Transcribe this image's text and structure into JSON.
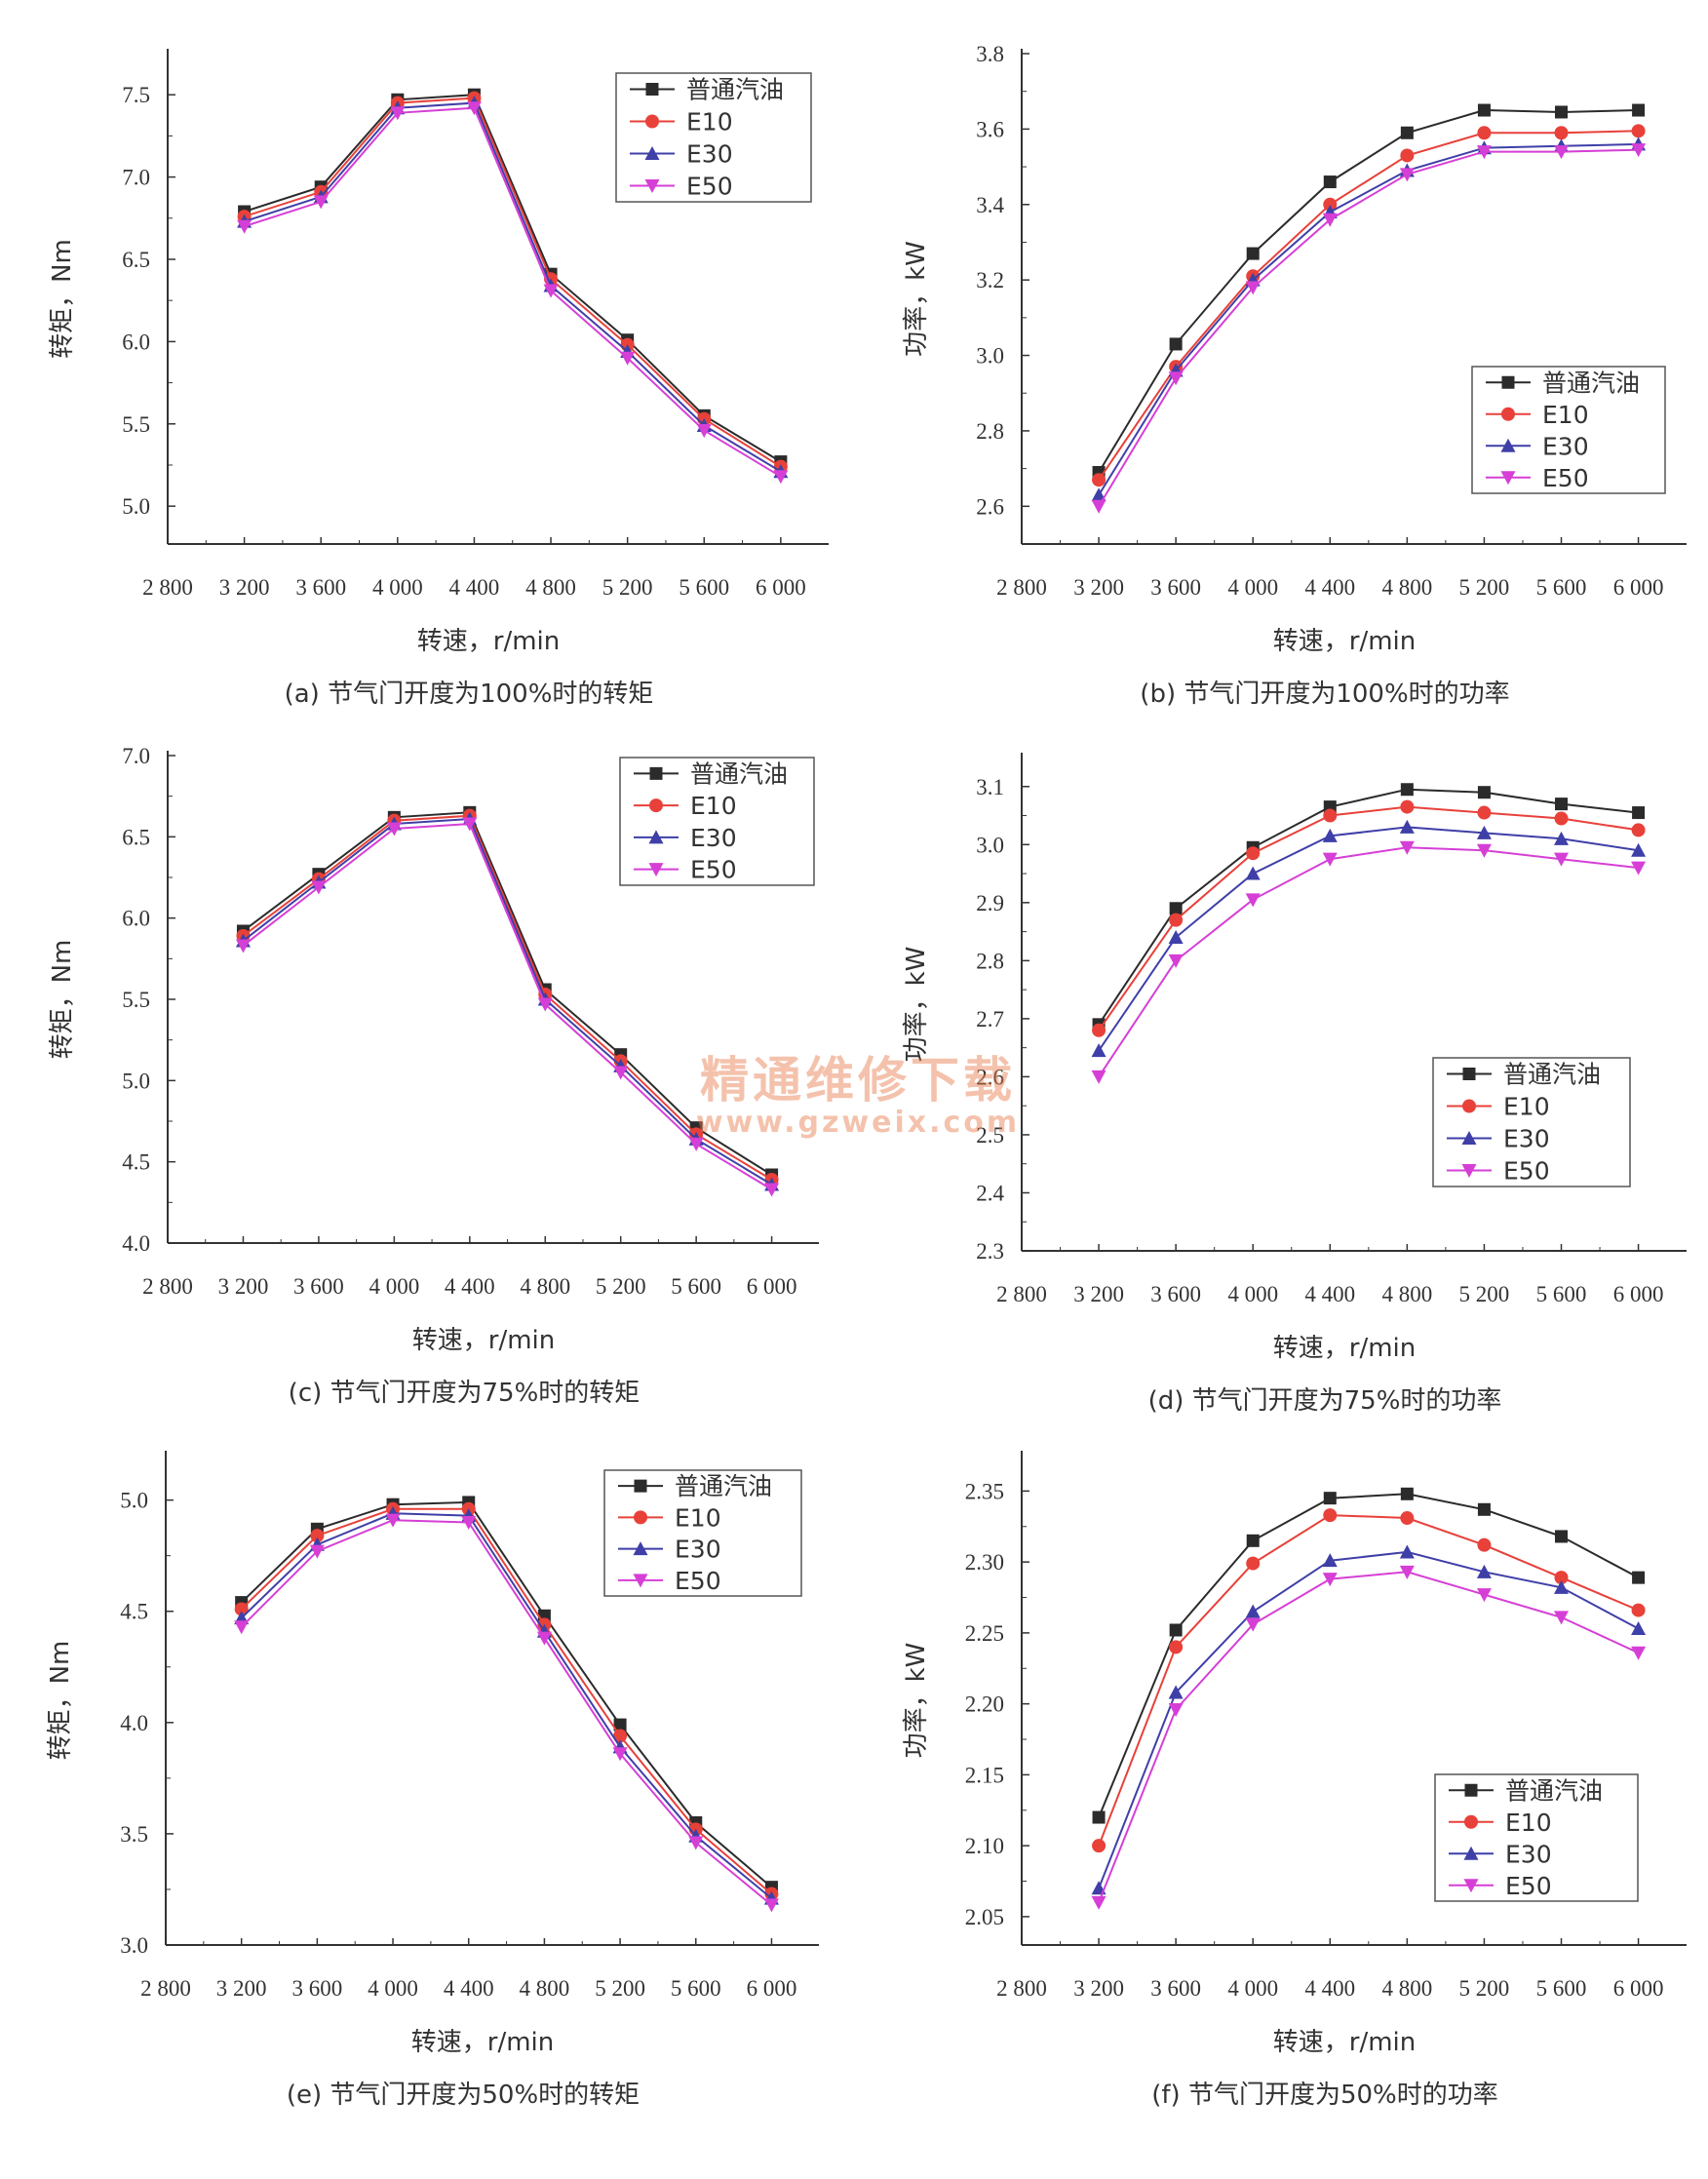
{
  "colors": {
    "普通汽油": "#2b2b2b",
    "E10": "#e8413a",
    "E30": "#3f3fa8",
    "E50": "#d63fd6"
  },
  "markers": {
    "普通汽油": "square",
    "E10": "circle",
    "E30": "triangle-up",
    "E50": "triangle-down"
  },
  "watermark": {
    "text": "精通维修下载",
    "url": "www.gzweix.com"
  },
  "chart_data": [
    {
      "type": "line",
      "caption": "(a) 节气门开度为100%时的转矩",
      "xlabel": "转速，r/min",
      "ylabel": "转矩，Nm",
      "x_ticks": [
        "2 800",
        "3 200",
        "3 600",
        "4 000",
        "4 400",
        "4 800",
        "5 200",
        "5 600",
        "6 000"
      ],
      "x": [
        3200,
        3600,
        4000,
        4400,
        4800,
        5200,
        5600,
        6000
      ],
      "xlim": [
        2800,
        6250
      ],
      "ylim": [
        4.77,
        7.75
      ],
      "y_ticks": [
        "5.0",
        "5.5",
        "6.0",
        "6.5",
        "7.0",
        "7.5"
      ],
      "legend_pos": "top-right",
      "series": [
        {
          "name": "普通汽油",
          "values": [
            6.79,
            6.94,
            7.47,
            7.5,
            6.41,
            6.01,
            5.55,
            5.27
          ]
        },
        {
          "name": "E10",
          "values": [
            6.76,
            6.91,
            7.45,
            7.48,
            6.38,
            5.98,
            5.53,
            5.24
          ]
        },
        {
          "name": "E30",
          "values": [
            6.73,
            6.88,
            7.42,
            7.45,
            6.34,
            5.94,
            5.49,
            5.21
          ]
        },
        {
          "name": "E50",
          "values": [
            6.7,
            6.85,
            7.39,
            7.42,
            6.31,
            5.9,
            5.46,
            5.18
          ]
        }
      ]
    },
    {
      "type": "line",
      "caption": "(b) 节气门开度为100%时的功率",
      "xlabel": "转速，r/min",
      "ylabel": "功率，kW",
      "x_ticks": [
        "2 800",
        "3 200",
        "3 600",
        "4 000",
        "4 400",
        "4 800",
        "5 200",
        "5 600",
        "6 000"
      ],
      "x": [
        3200,
        3600,
        4000,
        4400,
        4800,
        5200,
        5600,
        6000
      ],
      "xlim": [
        2800,
        6250
      ],
      "ylim": [
        2.5,
        3.8
      ],
      "y_ticks": [
        "2.6",
        "2.8",
        "3.0",
        "3.2",
        "3.4",
        "3.6",
        "3.8"
      ],
      "legend_pos": "center-right",
      "series": [
        {
          "name": "普通汽油",
          "values": [
            2.69,
            3.03,
            3.27,
            3.46,
            3.59,
            3.65,
            3.645,
            3.65
          ]
        },
        {
          "name": "E10",
          "values": [
            2.67,
            2.97,
            3.21,
            3.4,
            3.53,
            3.59,
            3.59,
            3.595
          ]
        },
        {
          "name": "E30",
          "values": [
            2.63,
            2.96,
            3.2,
            3.38,
            3.49,
            3.55,
            3.555,
            3.56
          ]
        },
        {
          "name": "E50",
          "values": [
            2.6,
            2.94,
            3.18,
            3.36,
            3.48,
            3.54,
            3.54,
            3.545
          ]
        }
      ]
    },
    {
      "type": "line",
      "caption": "(c) 节气门开度为75%时的转矩",
      "xlabel": "转速，r/min",
      "ylabel": "转矩，Nm",
      "x_ticks": [
        "2 800",
        "3 200",
        "3 600",
        "4 000",
        "4 400",
        "4 800",
        "5 200",
        "5 600",
        "6 000"
      ],
      "x": [
        3200,
        3600,
        4000,
        4400,
        4800,
        5200,
        5600,
        6000
      ],
      "xlim": [
        2800,
        6250
      ],
      "ylim": [
        4.0,
        7.0
      ],
      "y_ticks": [
        "4.0",
        "4.5",
        "5.0",
        "5.5",
        "6.0",
        "6.5",
        "7.0"
      ],
      "legend_pos": "top-right",
      "series": [
        {
          "name": "普通汽油",
          "values": [
            5.92,
            6.27,
            6.62,
            6.65,
            5.56,
            5.16,
            4.71,
            4.42
          ]
        },
        {
          "name": "E10",
          "values": [
            5.89,
            6.24,
            6.6,
            6.63,
            5.53,
            5.12,
            4.67,
            4.39
          ]
        },
        {
          "name": "E30",
          "values": [
            5.86,
            6.22,
            6.58,
            6.61,
            5.5,
            5.09,
            4.64,
            4.36
          ]
        },
        {
          "name": "E50",
          "values": [
            5.83,
            6.19,
            6.55,
            6.58,
            5.47,
            5.05,
            4.61,
            4.33
          ]
        }
      ]
    },
    {
      "type": "line",
      "caption": "(d) 节气门开度为75%时的功率",
      "xlabel": "转速，r/min",
      "ylabel": "功率，kW",
      "x_ticks": [
        "2 800",
        "3 200",
        "3 600",
        "4 000",
        "4 400",
        "4 800",
        "5 200",
        "5 600",
        "6 000"
      ],
      "x": [
        3200,
        3600,
        4000,
        4400,
        4800,
        5200,
        5600,
        6000
      ],
      "xlim": [
        2800,
        6250
      ],
      "ylim": [
        2.3,
        3.15
      ],
      "y_ticks": [
        "2.3",
        "2.4",
        "2.5",
        "2.6",
        "2.7",
        "2.8",
        "2.9",
        "3.0",
        "3.1"
      ],
      "legend_pos": "bottom-right",
      "series": [
        {
          "name": "普通汽油",
          "values": [
            2.69,
            2.89,
            2.995,
            3.065,
            3.095,
            3.09,
            3.07,
            3.055
          ]
        },
        {
          "name": "E10",
          "values": [
            2.68,
            2.87,
            2.985,
            3.05,
            3.065,
            3.055,
            3.045,
            3.025
          ]
        },
        {
          "name": "E30",
          "values": [
            2.645,
            2.84,
            2.95,
            3.015,
            3.03,
            3.02,
            3.01,
            2.99
          ]
        },
        {
          "name": "E50",
          "values": [
            2.6,
            2.8,
            2.905,
            2.975,
            2.995,
            2.99,
            2.975,
            2.96
          ]
        }
      ]
    },
    {
      "type": "line",
      "caption": "(e) 节气门开度为50%时的转矩",
      "xlabel": "转速，r/min",
      "ylabel": "转矩，Nm",
      "x_ticks": [
        "2 800",
        "3 200",
        "3 600",
        "4 000",
        "4 400",
        "4 800",
        "5 200",
        "5 600",
        "6 000"
      ],
      "x": [
        3200,
        3600,
        4000,
        4400,
        4800,
        5200,
        5600,
        6000
      ],
      "xlim": [
        2800,
        6250
      ],
      "ylim": [
        3.0,
        5.2
      ],
      "y_ticks": [
        "3.0",
        "3.5",
        "4.0",
        "4.5",
        "5.0"
      ],
      "legend_pos": "top-right",
      "series": [
        {
          "name": "普通汽油",
          "values": [
            4.54,
            4.87,
            4.98,
            4.99,
            4.48,
            3.99,
            3.55,
            3.26
          ]
        },
        {
          "name": "E10",
          "values": [
            4.51,
            4.84,
            4.96,
            4.96,
            4.44,
            3.94,
            3.52,
            3.23
          ]
        },
        {
          "name": "E30",
          "values": [
            4.47,
            4.8,
            4.94,
            4.93,
            4.41,
            3.89,
            3.49,
            3.21
          ]
        },
        {
          "name": "E50",
          "values": [
            4.43,
            4.77,
            4.91,
            4.9,
            4.38,
            3.86,
            3.46,
            3.18
          ]
        }
      ]
    },
    {
      "type": "line",
      "caption": "(f) 节气门开度为50%时的功率",
      "xlabel": "转速，r/min",
      "ylabel": "功率，kW",
      "x_ticks": [
        "2 800",
        "3 200",
        "3 600",
        "4 000",
        "4 400",
        "4 800",
        "5 200",
        "5 600",
        "6 000"
      ],
      "x": [
        3200,
        3600,
        4000,
        4400,
        4800,
        5200,
        5600,
        6000
      ],
      "xlim": [
        2800,
        6250
      ],
      "ylim": [
        2.03,
        2.375
      ],
      "y_ticks": [
        "2.05",
        "2.10",
        "2.15",
        "2.20",
        "2.25",
        "2.30",
        "2.35"
      ],
      "legend_pos": "bottom-right",
      "series": [
        {
          "name": "普通汽油",
          "values": [
            2.12,
            2.252,
            2.315,
            2.345,
            2.348,
            2.337,
            2.318,
            2.289
          ]
        },
        {
          "name": "E10",
          "values": [
            2.1,
            2.24,
            2.299,
            2.333,
            2.331,
            2.312,
            2.289,
            2.266
          ]
        },
        {
          "name": "E30",
          "values": [
            2.07,
            2.208,
            2.265,
            2.301,
            2.307,
            2.293,
            2.282,
            2.253
          ]
        },
        {
          "name": "E50",
          "values": [
            2.06,
            2.196,
            2.256,
            2.288,
            2.293,
            2.277,
            2.261,
            2.236
          ]
        }
      ]
    }
  ]
}
